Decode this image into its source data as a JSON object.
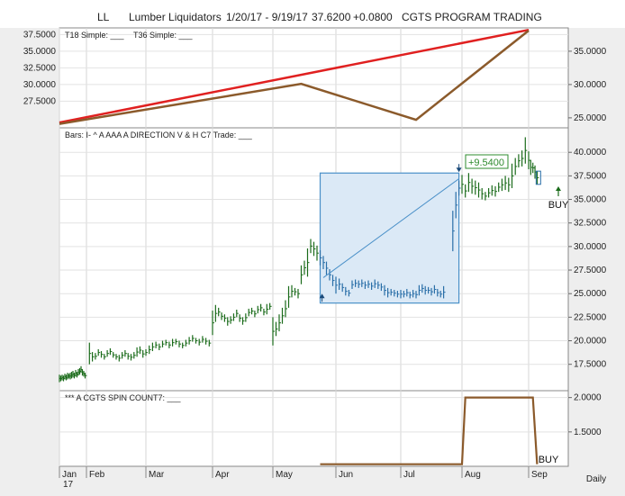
{
  "header": {
    "symbol": "LL",
    "name": "Lumber Liquidators",
    "range": "1/20/17 - 9/19/17",
    "price": "37.6200",
    "change": "+0.0800",
    "program": "CGTS PROGRAM TRADING"
  },
  "chart_data": [
    {
      "type": "line",
      "panel": "top",
      "legend": [
        "T18 Simple: ___",
        "T36 Simple: ___"
      ],
      "left_ticks": [
        "37.5000",
        "35.0000",
        "32.5000",
        "30.0000",
        "27.5000"
      ],
      "right_ticks": [
        "35.0000",
        "30.0000",
        "25.0000"
      ],
      "ylim": [
        23.5,
        38.5
      ],
      "series": [
        {
          "color": "#e02020",
          "points": [
            [
              0,
              24.3
            ],
            [
              8,
              38.2
            ]
          ]
        },
        {
          "color": "#8b5a2b",
          "points": [
            [
              0,
              24.1
            ],
            [
              4.45,
              30.1
            ],
            [
              6.25,
              24.7
            ],
            [
              8,
              38.1
            ]
          ]
        }
      ]
    },
    {
      "type": "bar",
      "panel": "price",
      "legend": "Bars: I-     ^ A AAA A DIRECTION V & H C7 Trade: ___",
      "right_ticks": [
        "40.0000",
        "37.5000",
        "35.0000",
        "32.5000",
        "30.0000",
        "27.5000",
        "25.0000",
        "22.5000",
        "20.0000",
        "17.5000"
      ],
      "ylim": [
        14.7,
        42.6
      ],
      "annotation_gain": "+9.5400",
      "annotation_buy": "BUY",
      "trade_box": {
        "x": [
          4.75,
          6.95
        ],
        "y": [
          24.0,
          37.8
        ]
      },
      "trendline": [
        [
          4.8,
          26.7
        ],
        [
          6.95,
          37.2
        ]
      ],
      "bars": [
        [
          0.0,
          15.6,
          16.4
        ],
        [
          0.05,
          15.7,
          16.3
        ],
        [
          0.1,
          15.8,
          16.4
        ],
        [
          0.15,
          15.7,
          16.3
        ],
        [
          0.2,
          15.9,
          16.5
        ],
        [
          0.25,
          15.8,
          16.4
        ],
        [
          0.3,
          15.9,
          16.6
        ],
        [
          0.35,
          16.0,
          16.5
        ],
        [
          0.4,
          15.9,
          16.6
        ],
        [
          0.45,
          16.0,
          16.7
        ],
        [
          0.5,
          16.1,
          16.8
        ],
        [
          0.55,
          16.0,
          16.6
        ],
        [
          0.6,
          16.2,
          16.9
        ],
        [
          0.65,
          16.1,
          16.7
        ],
        [
          0.7,
          16.3,
          17.0
        ],
        [
          0.75,
          16.4,
          17.1
        ],
        [
          0.8,
          16.6,
          17.3
        ],
        [
          0.85,
          16.3,
          16.9
        ],
        [
          0.9,
          16.2,
          16.8
        ],
        [
          0.95,
          16.0,
          16.6
        ],
        [
          1.05,
          17.5,
          19.8
        ],
        [
          1.1,
          17.8,
          18.8
        ],
        [
          1.15,
          18.0,
          18.7
        ],
        [
          1.2,
          18.4,
          19.1
        ],
        [
          1.25,
          18.2,
          18.9
        ],
        [
          1.3,
          18.0,
          18.6
        ],
        [
          1.35,
          18.3,
          19.0
        ],
        [
          1.4,
          18.5,
          19.2
        ],
        [
          1.45,
          18.2,
          18.8
        ],
        [
          1.5,
          18.0,
          18.6
        ],
        [
          1.55,
          17.8,
          18.5
        ],
        [
          1.6,
          18.1,
          18.8
        ],
        [
          1.65,
          18.3,
          19.0
        ],
        [
          1.7,
          18.0,
          18.7
        ],
        [
          1.75,
          17.9,
          18.6
        ],
        [
          1.8,
          18.1,
          18.8
        ],
        [
          1.85,
          18.3,
          19.3
        ],
        [
          1.9,
          18.6,
          19.4
        ],
        [
          1.95,
          18.2,
          19.0
        ],
        [
          2.0,
          18.4,
          19.1
        ],
        [
          2.05,
          18.6,
          19.5
        ],
        [
          2.1,
          18.9,
          19.8
        ],
        [
          2.15,
          19.2,
          19.9
        ],
        [
          2.2,
          19.0,
          19.7
        ],
        [
          2.25,
          19.3,
          20.0
        ],
        [
          2.3,
          19.5,
          20.1
        ],
        [
          2.35,
          19.2,
          19.9
        ],
        [
          2.4,
          19.4,
          20.2
        ],
        [
          2.45,
          19.6,
          20.2
        ],
        [
          2.5,
          19.3,
          20.0
        ],
        [
          2.55,
          19.2,
          19.8
        ],
        [
          2.6,
          19.4,
          20.1
        ],
        [
          2.65,
          19.6,
          20.4
        ],
        [
          2.7,
          19.9,
          20.6
        ],
        [
          2.75,
          19.7,
          20.3
        ],
        [
          2.8,
          19.5,
          20.2
        ],
        [
          2.85,
          19.8,
          20.5
        ],
        [
          2.9,
          19.6,
          20.3
        ],
        [
          2.95,
          19.4,
          20.1
        ],
        [
          3.0,
          20.6,
          23.2
        ],
        [
          3.05,
          22.0,
          23.8
        ],
        [
          3.1,
          22.6,
          23.5
        ],
        [
          3.15,
          22.2,
          23.0
        ],
        [
          3.2,
          22.0,
          22.8
        ],
        [
          3.25,
          21.6,
          22.5
        ],
        [
          3.3,
          21.8,
          22.6
        ],
        [
          3.35,
          22.1,
          22.9
        ],
        [
          3.4,
          22.5,
          23.3
        ],
        [
          3.45,
          22.0,
          22.8
        ],
        [
          3.5,
          21.7,
          22.5
        ],
        [
          3.55,
          22.0,
          22.9
        ],
        [
          3.6,
          22.6,
          23.4
        ],
        [
          3.65,
          22.8,
          23.5
        ],
        [
          3.7,
          22.5,
          23.2
        ],
        [
          3.75,
          22.9,
          23.7
        ],
        [
          3.8,
          23.1,
          23.9
        ],
        [
          3.85,
          22.7,
          23.4
        ],
        [
          3.9,
          22.8,
          23.9
        ],
        [
          3.95,
          23.3,
          24.0
        ],
        [
          4.0,
          19.5,
          22.5
        ],
        [
          4.05,
          20.5,
          22.0
        ],
        [
          4.1,
          21.0,
          22.8
        ],
        [
          4.15,
          21.8,
          23.5
        ],
        [
          4.2,
          22.5,
          24.3
        ],
        [
          4.25,
          23.5,
          25.8
        ],
        [
          4.3,
          24.6,
          25.9
        ],
        [
          4.35,
          24.8,
          25.6
        ],
        [
          4.4,
          24.5,
          25.5
        ],
        [
          4.45,
          26.0,
          28.0
        ],
        [
          4.5,
          27.0,
          28.5
        ],
        [
          4.55,
          26.8,
          29.8
        ],
        [
          4.6,
          29.3,
          30.8
        ],
        [
          4.65,
          29.0,
          30.5
        ],
        [
          4.7,
          28.5,
          30.1
        ],
        [
          4.75,
          28.0,
          29.6
        ],
        [
          4.8,
          27.6,
          29.0
        ],
        [
          4.85,
          27.0,
          28.4
        ],
        [
          4.9,
          26.4,
          27.6
        ],
        [
          4.95,
          25.8,
          27.0
        ],
        [
          5.0,
          25.0,
          26.8
        ],
        [
          5.05,
          25.4,
          26.6
        ],
        [
          5.1,
          25.2,
          26.1
        ],
        [
          5.15,
          24.8,
          25.7
        ],
        [
          5.2,
          24.7,
          25.4
        ],
        [
          5.25,
          25.5,
          26.4
        ],
        [
          5.3,
          25.7,
          26.5
        ],
        [
          5.35,
          25.6,
          26.4
        ],
        [
          5.4,
          25.7,
          26.5
        ],
        [
          5.45,
          25.5,
          26.3
        ],
        [
          5.5,
          25.6,
          26.4
        ],
        [
          5.55,
          25.4,
          26.2
        ],
        [
          5.6,
          25.6,
          26.5
        ],
        [
          5.65,
          25.5,
          26.3
        ],
        [
          5.7,
          25.3,
          26.1
        ],
        [
          5.75,
          24.8,
          25.9
        ],
        [
          5.8,
          24.6,
          25.6
        ],
        [
          5.85,
          24.8,
          25.5
        ],
        [
          5.9,
          24.7,
          25.4
        ],
        [
          5.95,
          24.6,
          25.3
        ],
        [
          6.0,
          24.5,
          25.4
        ],
        [
          6.05,
          24.6,
          25.3
        ],
        [
          6.1,
          24.7,
          25.5
        ],
        [
          6.15,
          24.5,
          25.2
        ],
        [
          6.2,
          24.6,
          25.4
        ],
        [
          6.25,
          24.5,
          25.3
        ],
        [
          6.3,
          24.8,
          25.9
        ],
        [
          6.35,
          25.1,
          26.0
        ],
        [
          6.4,
          24.9,
          25.8
        ],
        [
          6.45,
          25.0,
          25.7
        ],
        [
          6.5,
          24.8,
          25.6
        ],
        [
          6.55,
          25.0,
          25.9
        ],
        [
          6.6,
          24.7,
          25.5
        ],
        [
          6.65,
          24.6,
          25.3
        ],
        [
          6.7,
          24.5,
          25.8
        ],
        [
          6.85,
          29.5,
          33.8
        ],
        [
          6.9,
          33.0,
          35.8
        ],
        [
          6.95,
          35.4,
          37.0
        ],
        [
          7.0,
          35.6,
          37.6
        ],
        [
          7.05,
          35.2,
          36.6
        ],
        [
          7.1,
          35.8,
          37.8
        ],
        [
          7.15,
          35.6,
          37.2
        ],
        [
          7.2,
          35.5,
          37.0
        ],
        [
          7.25,
          35.2,
          36.8
        ],
        [
          7.3,
          35.0,
          36.2
        ],
        [
          7.35,
          34.9,
          35.8
        ],
        [
          7.4,
          35.2,
          36.2
        ],
        [
          7.45,
          35.4,
          36.5
        ],
        [
          7.5,
          35.3,
          36.4
        ],
        [
          7.55,
          35.8,
          36.8
        ],
        [
          7.6,
          35.9,
          37.2
        ],
        [
          7.65,
          36.0,
          37.5
        ],
        [
          7.7,
          35.8,
          37.3
        ],
        [
          7.75,
          36.2,
          38.8
        ],
        [
          7.8,
          37.6,
          39.4
        ],
        [
          7.85,
          38.4,
          39.8
        ],
        [
          7.9,
          38.5,
          40.2
        ],
        [
          7.95,
          38.8,
          41.6
        ],
        [
          8.0,
          38.2,
          40.1
        ],
        [
          8.05,
          37.6,
          39.2
        ],
        [
          8.1,
          37.8,
          38.9
        ],
        [
          8.15,
          37.2,
          38.6
        ],
        [
          8.2,
          36.6,
          38.0
        ]
      ]
    },
    {
      "type": "line",
      "panel": "oscillator",
      "legend": "*** A CGTS SPIN COUNT7: ___",
      "right_ticks": [
        "2.0000",
        "1.5000"
      ],
      "ylim": [
        1.0,
        2.1
      ],
      "annotation_buy": "BUY",
      "series": [
        {
          "color": "#8b5a2b",
          "points": [
            [
              4.75,
              1.03
            ],
            [
              7.0,
              1.03
            ],
            [
              7.05,
              2.0
            ],
            [
              8.1,
              2.0
            ],
            [
              8.2,
              1.03
            ]
          ]
        }
      ]
    }
  ],
  "x_axis": {
    "months": [
      "Jan",
      "Feb",
      "Mar",
      "Apr",
      "May",
      "Jun",
      "Jul",
      "Aug",
      "Sep"
    ],
    "year": "17",
    "period": "Daily"
  }
}
